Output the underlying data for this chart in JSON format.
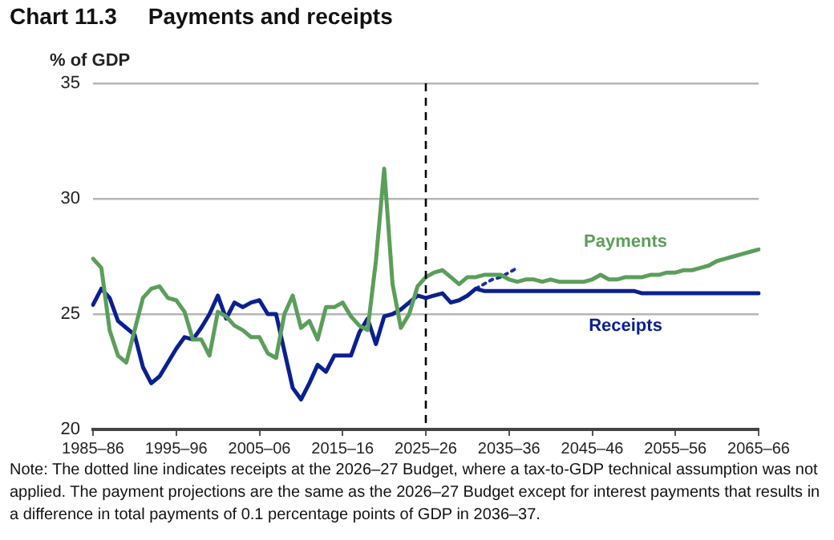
{
  "chart_data": {
    "type": "line",
    "title": "Chart 11.3     Payments and receipts",
    "ylabel": "% of GDP",
    "categories": [
      "1985–86",
      null,
      null,
      null,
      null,
      null,
      null,
      null,
      null,
      null,
      "1995–96",
      null,
      null,
      null,
      null,
      null,
      null,
      null,
      null,
      null,
      "2005–06",
      null,
      null,
      null,
      null,
      null,
      null,
      null,
      null,
      null,
      "2015–16",
      null,
      null,
      null,
      null,
      null,
      null,
      null,
      null,
      null,
      "2025–26",
      null,
      null,
      null,
      null,
      null,
      null,
      null,
      null,
      null,
      "2035–36",
      null,
      null,
      null,
      null,
      null,
      null,
      null,
      null,
      null,
      "2045–46",
      null,
      null,
      null,
      null,
      null,
      null,
      null,
      null,
      null,
      "2055–56",
      null,
      null,
      null,
      null,
      null,
      null,
      null,
      null,
      null,
      "2065–66"
    ],
    "series": [
      {
        "name": "Payments",
        "color": "#5b9e5b",
        "values": [
          27.4,
          27.0,
          24.3,
          23.2,
          22.9,
          24.3,
          25.7,
          26.1,
          26.2,
          25.7,
          25.6,
          25.1,
          23.9,
          23.9,
          23.2,
          25.1,
          24.9,
          24.5,
          24.3,
          24.0,
          24.0,
          23.3,
          23.1,
          25.0,
          25.8,
          24.4,
          24.7,
          23.9,
          25.3,
          25.3,
          25.5,
          24.9,
          24.5,
          24.3,
          27.3,
          31.3,
          26.3,
          24.4,
          25.0,
          26.2,
          26.6,
          26.8,
          26.9,
          26.6,
          26.3,
          26.6,
          26.6,
          26.7,
          26.7,
          26.7,
          26.5,
          26.4,
          26.5,
          26.5,
          26.4,
          26.5,
          26.4,
          26.4,
          26.4,
          26.4,
          26.5,
          26.7,
          26.5,
          26.5,
          26.6,
          26.6,
          26.6,
          26.7,
          26.7,
          26.8,
          26.8,
          26.9,
          26.9,
          27.0,
          27.1,
          27.3,
          27.4,
          27.5,
          27.6,
          27.7,
          27.8
        ]
      },
      {
        "name": "Receipts",
        "color": "#0b2090",
        "values": [
          25.4,
          26.1,
          25.7,
          24.7,
          24.4,
          24.1,
          22.7,
          22.0,
          22.3,
          22.9,
          23.5,
          24.0,
          23.9,
          24.4,
          25.0,
          25.8,
          24.8,
          25.5,
          25.3,
          25.5,
          25.6,
          25.0,
          25.0,
          23.4,
          21.8,
          21.3,
          22.0,
          22.8,
          22.5,
          23.2,
          23.2,
          23.2,
          24.2,
          24.8,
          23.7,
          24.9,
          25.0,
          25.2,
          25.5,
          25.8,
          25.7,
          25.8,
          25.9,
          25.5,
          25.6,
          25.8,
          26.1,
          26.0,
          26.0,
          26.0,
          26.0,
          26.0,
          26.0,
          26.0,
          26.0,
          26.0,
          26.0,
          26.0,
          26.0,
          26.0,
          26.0,
          26.0,
          26.0,
          26.0,
          26.0,
          26.0,
          25.9,
          25.9,
          25.9,
          25.9,
          25.9,
          25.9,
          25.9,
          25.9,
          25.9,
          25.9,
          25.9,
          25.9,
          25.9,
          25.9,
          25.9
        ]
      },
      {
        "color": "#1b2f9f",
        "line_style": "dotted",
        "values": [
          null,
          null,
          null,
          null,
          null,
          null,
          null,
          null,
          null,
          null,
          null,
          null,
          null,
          null,
          null,
          null,
          null,
          null,
          null,
          null,
          null,
          null,
          null,
          null,
          null,
          null,
          null,
          null,
          null,
          null,
          null,
          null,
          null,
          null,
          null,
          null,
          null,
          null,
          null,
          null,
          null,
          null,
          null,
          null,
          null,
          null,
          26.1,
          26.3,
          26.5,
          26.6,
          26.8,
          27.0,
          null,
          null,
          null,
          null,
          null,
          null,
          null,
          null,
          null,
          null,
          null,
          null,
          null,
          null,
          null,
          null,
          null,
          null,
          null,
          null,
          null,
          null,
          null,
          null,
          null,
          null,
          null,
          null,
          null
        ]
      }
    ],
    "ylim": [
      20,
      35
    ],
    "yticks": [
      20,
      25,
      30,
      35
    ],
    "grid": "y",
    "legend": false,
    "marker": "none",
    "line_style": "solid",
    "ref_lines": [
      {
        "axis": "x",
        "value": "2025–26",
        "color": "#000000",
        "line_style": "dashed"
      }
    ],
    "annotations": [
      "Note: The dotted line indicates receipts at the 2026–27 Budget, where a tax-to-GDP technical assumption was not applied. The payment projections are the same as the 2026–27 Budget except for interest payments that results in a difference in total payments of 0.1 percentage points of GDP in 2036–37."
    ]
  }
}
